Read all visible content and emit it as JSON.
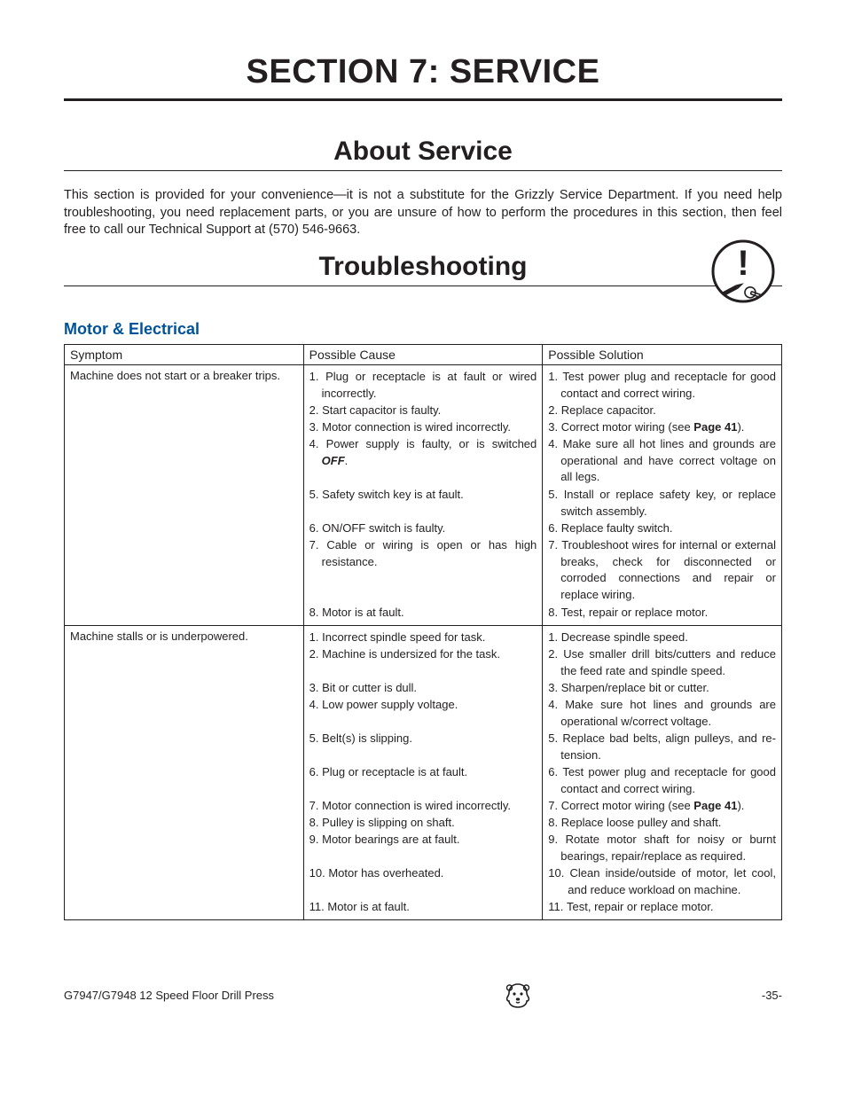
{
  "page": {
    "section_title": "SECTION 7: SERVICE",
    "about_title": "About Service",
    "intro_text": "This section is provided for your convenience—it is not a substitute for the Grizzly Service Department. If you need help troubleshooting, you need replacement parts, or you are unsure of how to perform the procedures in this section, then feel free to call our Technical Support at (570) 546-9663.",
    "trouble_title": "Troubleshooting",
    "category": "Motor & Electrical",
    "headers": {
      "symptom": "Symptom",
      "cause": "Possible Cause",
      "solution": "Possible Solution"
    },
    "rows": [
      {
        "symptom": "Machine does not start or a breaker trips.",
        "cause_items": [
          {
            "n": "1.",
            "t": "Plug or receptacle is at fault or wired incorrectly."
          },
          {
            "n": "2.",
            "t": "Start capacitor is faulty."
          },
          {
            "n": "3.",
            "t": "Motor connection is wired incorrectly."
          },
          {
            "n": "4.",
            "t": "Power supply is faulty, or is switched ",
            "tail_bi": "OFF",
            "tail2": "."
          },
          {
            "n": "5.",
            "t": "Safety switch key is at fault."
          },
          {
            "n": "6.",
            "t": "ON/OFF switch is faulty."
          },
          {
            "n": "7.",
            "t": "Cable or wiring is open or has high resistance."
          },
          {
            "n": "8.",
            "t": "Motor is at fault."
          }
        ],
        "sol_items": [
          {
            "n": "1.",
            "t": "Test power plug and receptacle for good contact and correct wiring."
          },
          {
            "n": "2.",
            "t": "Replace capacitor."
          },
          {
            "n": "3.",
            "t": "Correct motor wiring (see ",
            "tail_b": "Page 41",
            "tail2": ")."
          },
          {
            "n": "4.",
            "t": "Make sure all hot lines and grounds are operational and have correct voltage on all legs."
          },
          {
            "n": "5.",
            "t": "Install or replace safety key, or replace switch assembly."
          },
          {
            "n": "6.",
            "t": "Replace faulty switch."
          },
          {
            "n": "7.",
            "t": "Troubleshoot wires for internal or external breaks, check for disconnected or corroded connections and repair or replace wiring."
          },
          {
            "n": "8.",
            "t": "Test, repair or replace motor."
          }
        ],
        "pair_heights": [
          38,
          19,
          19,
          57,
          38,
          19,
          76,
          19
        ]
      },
      {
        "symptom": "Machine stalls or is underpowered.",
        "cause_items": [
          {
            "n": "1.",
            "t": "Incorrect spindle speed for task."
          },
          {
            "n": "2.",
            "t": "Machine is undersized for the task."
          },
          {
            "n": "3.",
            "t": "Bit or cutter is dull."
          },
          {
            "n": "4.",
            "t": "Low power supply voltage."
          },
          {
            "n": "5.",
            "t": "Belt(s) is slipping."
          },
          {
            "n": "6.",
            "t": "Plug or receptacle is at fault."
          },
          {
            "n": "7.",
            "t": "Motor connection is wired incorrectly."
          },
          {
            "n": "8.",
            "t": "Pulley is slipping on shaft."
          },
          {
            "n": "9.",
            "t": "Motor bearings are at fault."
          },
          {
            "n": "10.",
            "t": "Motor has overheated.",
            "dbl": true
          },
          {
            "n": "11.",
            "t": "Motor is at fault.",
            "dbl": true
          }
        ],
        "sol_items": [
          {
            "n": "1.",
            "t": "Decrease spindle speed."
          },
          {
            "n": "2.",
            "t": "Use smaller drill bits/cutters and reduce the feed rate and spindle speed."
          },
          {
            "n": "3.",
            "t": "Sharpen/replace bit or cutter."
          },
          {
            "n": "4.",
            "t": "Make sure hot lines and grounds are operational w/correct voltage."
          },
          {
            "n": "5.",
            "t": "Replace bad belts, align pulleys, and re-tension."
          },
          {
            "n": "6.",
            "t": "Test power plug and receptacle for good contact and correct wiring."
          },
          {
            "n": "7.",
            "t": "Correct motor wiring (see ",
            "tail_b": "Page 41",
            "tail2": ")."
          },
          {
            "n": "8.",
            "t": "Replace loose pulley and shaft."
          },
          {
            "n": "9.",
            "t": "Rotate motor shaft for noisy or burnt bearings, repair/replace as required."
          },
          {
            "n": "10.",
            "t": "Clean inside/outside of motor, let cool, and reduce workload on machine.",
            "dbl": true
          },
          {
            "n": "11.",
            "t": "Test, repair or replace motor.",
            "dbl": true
          }
        ],
        "pair_heights": [
          19,
          38,
          19,
          38,
          38,
          38,
          19,
          19,
          38,
          38,
          19
        ]
      }
    ],
    "footer_left": "G7947/G7948 12 Speed Floor Drill Press",
    "footer_right": "-35-"
  },
  "colors": {
    "text": "#231f20",
    "rule": "#231f20",
    "category": "#00539b",
    "background": "#ffffff"
  },
  "typography": {
    "section_title_pt": 38,
    "sub_title_pt": 30,
    "body_pt": 14.5,
    "table_pt": 13,
    "category_pt": 18
  }
}
